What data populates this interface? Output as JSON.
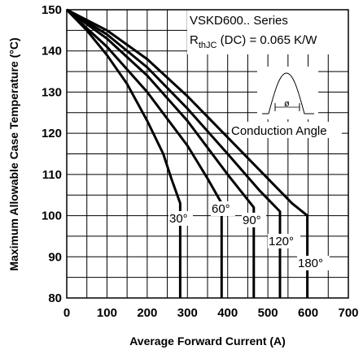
{
  "chart_data": {
    "type": "line",
    "title": "",
    "xlabel": "Average Forward Current (A)",
    "ylabel": "Maximum Allowable Case Temperature (°C)",
    "xlim": [
      0,
      700
    ],
    "ylim": [
      80,
      150
    ],
    "x_ticks": [
      "0",
      "100",
      "200",
      "300",
      "400",
      "500",
      "600",
      "700"
    ],
    "y_ticks": [
      "80",
      "90",
      "100",
      "110",
      "120",
      "130",
      "140",
      "150"
    ],
    "grid": true,
    "annotations": {
      "series_line1": "VSKD600.. Series",
      "rth_prefix": "R",
      "rth_sub": "thJC",
      "rth_suffix": " (DC) = 0.065 K/W",
      "conduction_angle": "Conduction Angle",
      "phi": "ø"
    },
    "series": [
      {
        "name": "30°",
        "points": [
          [
            0,
            150
          ],
          [
            50,
            145
          ],
          [
            100,
            139
          ],
          [
            150,
            132
          ],
          [
            200,
            123
          ],
          [
            240,
            115
          ],
          [
            260,
            109
          ],
          [
            282,
            103
          ],
          [
            282,
            80
          ]
        ]
      },
      {
        "name": "60°",
        "points": [
          [
            0,
            150
          ],
          [
            100,
            141
          ],
          [
            200,
            130
          ],
          [
            300,
            117
          ],
          [
            350,
            109
          ],
          [
            385,
            103
          ],
          [
            385,
            80
          ]
        ]
      },
      {
        "name": "90°",
        "points": [
          [
            0,
            150
          ],
          [
            100,
            143
          ],
          [
            200,
            134
          ],
          [
            300,
            123
          ],
          [
            400,
            110
          ],
          [
            465,
            102
          ],
          [
            465,
            80
          ]
        ]
      },
      {
        "name": "120°",
        "points": [
          [
            0,
            150
          ],
          [
            100,
            144
          ],
          [
            200,
            136
          ],
          [
            300,
            126
          ],
          [
            400,
            115
          ],
          [
            480,
            106
          ],
          [
            530,
            101
          ],
          [
            530,
            80
          ]
        ]
      },
      {
        "name": "180°",
        "points": [
          [
            0,
            150
          ],
          [
            100,
            145
          ],
          [
            200,
            138
          ],
          [
            300,
            129
          ],
          [
            400,
            119
          ],
          [
            500,
            109
          ],
          [
            560,
            103
          ],
          [
            598,
            100
          ],
          [
            598,
            80
          ]
        ]
      }
    ]
  }
}
